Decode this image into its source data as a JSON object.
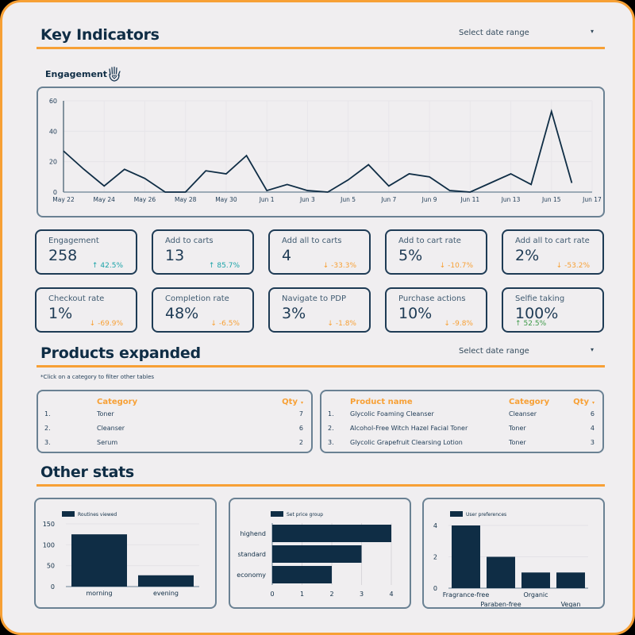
{
  "sections": {
    "key_indicators": {
      "title": "Key Indicators",
      "date_select": {
        "label": "Select date range",
        "caret": "▾"
      }
    },
    "products_expanded": {
      "title": "Products expanded",
      "date_select": {
        "label": "Select date range",
        "caret": "▾"
      },
      "note": "*Click on a category to filter other tables"
    },
    "other_stats": {
      "title": "Other stats"
    }
  },
  "engagement": {
    "label": "Engagement",
    "icon": "hand-heart-icon"
  },
  "kpis": [
    {
      "label": "Engagement",
      "value": "258",
      "delta": "42.5%",
      "direction": "up",
      "arrow": "↑"
    },
    {
      "label": "Add to carts",
      "value": "13",
      "delta": "85.7%",
      "direction": "up",
      "arrow": "↑"
    },
    {
      "label": "Add all to carts",
      "value": "4",
      "delta": "-33.3%",
      "direction": "down",
      "arrow": "↓"
    },
    {
      "label": "Add to cart rate",
      "value": "5%",
      "delta": "-10.7%",
      "direction": "down",
      "arrow": "↓"
    },
    {
      "label": "Add all to cart rate",
      "value": "2%",
      "delta": "-53.2%",
      "direction": "down",
      "arrow": "↓"
    },
    {
      "label": "Checkout rate",
      "value": "1%",
      "delta": "-69.9%",
      "direction": "down",
      "arrow": "↓"
    },
    {
      "label": "Completion rate",
      "value": "48%",
      "delta": "-6.5%",
      "direction": "down",
      "arrow": "↓"
    },
    {
      "label": "Navigate to PDP",
      "value": "3%",
      "delta": "-1.8%",
      "direction": "down",
      "arrow": "↓"
    },
    {
      "label": "Purchase actions",
      "value": "10%",
      "delta": "-9.8%",
      "direction": "down",
      "arrow": "↓"
    },
    {
      "label": "Selfie taking",
      "value": "100%",
      "delta": "52.5%",
      "direction": "up",
      "arrow": "↑"
    }
  ],
  "category_table": {
    "headers": {
      "category": "Category",
      "qty": "Qty",
      "sort_caret": "▾"
    },
    "rows": [
      {
        "rank": "1.",
        "category": "Toner",
        "qty": "7"
      },
      {
        "rank": "2.",
        "category": "Cleanser",
        "qty": "6"
      },
      {
        "rank": "3.",
        "category": "Serum",
        "qty": "2"
      }
    ]
  },
  "product_table": {
    "headers": {
      "product": "Product name",
      "category": "Category",
      "qty": "Qty",
      "sort_caret": "▾"
    },
    "rows": [
      {
        "rank": "1.",
        "product": "Glycolic Foaming Cleanser",
        "category": "Cleanser",
        "qty": "6"
      },
      {
        "rank": "2.",
        "product": "Alcohol-Free Witch Hazel Facial Toner",
        "category": "Toner",
        "qty": "4"
      },
      {
        "rank": "3.",
        "product": "Glycolic Grapefruit Clearsing Lotion",
        "category": "Toner",
        "qty": "3"
      }
    ]
  },
  "colors": {
    "accent": "#f7a035",
    "navy": "#0f2d45",
    "up": "#1aa3a8",
    "down": "#f7a035",
    "up_green": "#3e9a49",
    "bg": "#f0eef0"
  },
  "chart_data": [
    {
      "type": "line",
      "title": "Engagement",
      "x": [
        "May 22",
        "May 23",
        "May 24",
        "May 25",
        "May 26",
        "May 27",
        "May 28",
        "May 29",
        "May 30",
        "May 31",
        "Jun 1",
        "Jun 2",
        "Jun 3",
        "Jun 4",
        "Jun 5",
        "Jun 6",
        "Jun 7",
        "Jun 8",
        "Jun 9",
        "Jun 10",
        "Jun 11",
        "Jun 12",
        "Jun 13",
        "Jun 14",
        "Jun 15",
        "Jun 16"
      ],
      "values": [
        27,
        15,
        4,
        15,
        9,
        0,
        0,
        14,
        12,
        24,
        1,
        5,
        1,
        0,
        8,
        18,
        4,
        12,
        10,
        1,
        0,
        6,
        12,
        5,
        53,
        6
      ],
      "x_ticks": [
        "May 22",
        "May 24",
        "May 26",
        "May 28",
        "May 30",
        "Jun 1",
        "Jun 3",
        "Jun 5",
        "Jun 7",
        "Jun 9",
        "Jun 11",
        "Jun 13",
        "Jun 15",
        "Jun 17"
      ],
      "y_ticks": [
        "0",
        "20",
        "40",
        "60"
      ],
      "ylim": [
        0,
        60
      ],
      "xlabel": "",
      "ylabel": "",
      "grid": true
    },
    {
      "type": "bar",
      "title": "",
      "legend": [
        "Routines viewed"
      ],
      "categories": [
        "morning",
        "evening"
      ],
      "values": [
        125,
        27
      ],
      "y_ticks": [
        "0",
        "50",
        "100",
        "150"
      ],
      "ylim": [
        0,
        150
      ]
    },
    {
      "type": "bar",
      "orientation": "horizontal",
      "title": "",
      "legend": [
        "Set price group"
      ],
      "categories": [
        "highend",
        "standard",
        "economy"
      ],
      "values": [
        4,
        3,
        2
      ],
      "x_ticks": [
        "0",
        "1",
        "2",
        "3",
        "4"
      ],
      "xlim": [
        0,
        4
      ]
    },
    {
      "type": "bar",
      "title": "",
      "legend": [
        "User preferences"
      ],
      "categories": [
        "Fragrance-free",
        "Paraben-free",
        "Organic",
        "Vegan"
      ],
      "values": [
        4,
        2,
        1,
        1
      ],
      "y_ticks": [
        "0",
        "2",
        "4"
      ],
      "ylim": [
        0,
        4
      ]
    }
  ]
}
